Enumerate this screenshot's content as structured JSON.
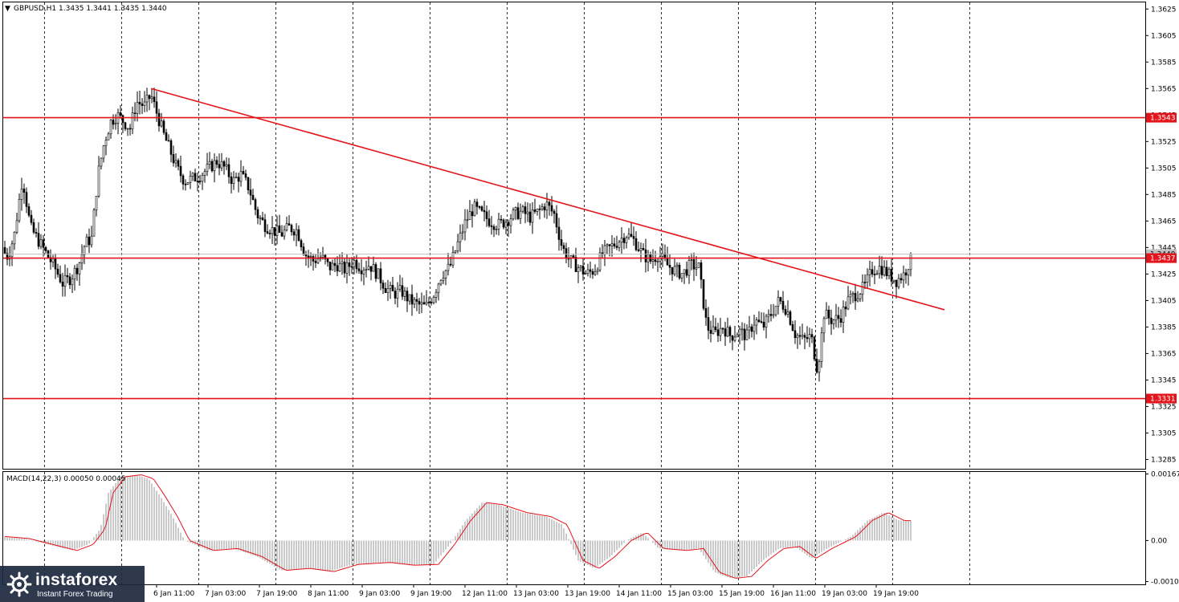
{
  "header": {
    "symbol_info": "GBPUSD,H1  1.3435 1.3441 1.3435 1.3440",
    "macd_info": "MACD(14,22,3) 0.00050 0.00045"
  },
  "logo": {
    "brand": "instaforex",
    "tagline": "Instant Forex Trading"
  },
  "colors": {
    "candles": "#000000",
    "level_lines": "#e4141b",
    "trendline": "#e4141b",
    "macd_hist": "#bdbdbd",
    "macd_signal": "#e4141b",
    "grid": "#000000"
  },
  "chart_data": {
    "type": "candlestick",
    "symbol": "GBPUSD",
    "timeframe": "H1",
    "last_bar": {
      "open": 1.3435,
      "high": 1.3441,
      "low": 1.3435,
      "close": 1.344
    },
    "price_axis": {
      "ticks": [
        "1.3625",
        "1.3605",
        "1.3585",
        "1.3565",
        "1.3545",
        "1.3525",
        "1.3505",
        "1.3485",
        "1.3465",
        "1.3445",
        "1.3425",
        "1.3405",
        "1.3385",
        "1.3365",
        "1.3345",
        "1.3325",
        "1.3305",
        "1.3285"
      ],
      "range": [
        1.3278,
        1.363
      ]
    },
    "time_axis_labels": [
      "6 Jan 11:00",
      "7 Jan 03:00",
      "7 Jan 19:00",
      "8 Jan 11:00",
      "9 Jan 03:00",
      "9 Jan 19:00",
      "12 Jan 11:00",
      "13 Jan 03:00",
      "13 Jan 19:00",
      "14 Jan 11:00",
      "15 Jan 03:00",
      "15 Jan 19:00",
      "16 Jan 11:00",
      "19 Jan 03:00",
      "19 Jan 19:00"
    ],
    "horizontal_levels": [
      {
        "value": 1.3543,
        "label": "1.3543"
      },
      {
        "value": 1.3437,
        "label": "1.3437"
      },
      {
        "value": 1.3331,
        "label": "1.3331"
      }
    ],
    "current_price": 1.344,
    "trendline": {
      "from_price": 1.3565,
      "to_price": 1.3398
    },
    "price_path": [
      [
        0,
        1.3445
      ],
      [
        10,
        1.3438
      ],
      [
        18,
        1.3455
      ],
      [
        28,
        1.3498
      ],
      [
        38,
        1.346
      ],
      [
        48,
        1.345
      ],
      [
        58,
        1.344
      ],
      [
        68,
        1.343
      ],
      [
        78,
        1.3418
      ],
      [
        88,
        1.3422
      ],
      [
        98,
        1.3432
      ],
      [
        106,
        1.3448
      ],
      [
        114,
        1.3452
      ],
      [
        122,
        1.35
      ],
      [
        130,
        1.3525
      ],
      [
        138,
        1.354
      ],
      [
        146,
        1.3545
      ],
      [
        154,
        1.354
      ],
      [
        162,
        1.3535
      ],
      [
        170,
        1.3555
      ],
      [
        180,
        1.3552
      ],
      [
        188,
        1.356
      ],
      [
        196,
        1.3545
      ],
      [
        204,
        1.353
      ],
      [
        212,
        1.3518
      ],
      [
        220,
        1.3505
      ],
      [
        230,
        1.3495
      ],
      [
        240,
        1.3497
      ],
      [
        250,
        1.35
      ],
      [
        260,
        1.3505
      ],
      [
        270,
        1.351
      ],
      [
        280,
        1.3505
      ],
      [
        290,
        1.3495
      ],
      [
        300,
        1.35
      ],
      [
        310,
        1.349
      ],
      [
        320,
        1.347
      ],
      [
        330,
        1.3462
      ],
      [
        340,
        1.3458
      ],
      [
        350,
        1.3455
      ],
      [
        360,
        1.346
      ],
      [
        370,
        1.3458
      ],
      [
        380,
        1.344
      ],
      [
        390,
        1.3435
      ],
      [
        400,
        1.3438
      ],
      [
        410,
        1.343
      ],
      [
        420,
        1.3432
      ],
      [
        430,
        1.3428
      ],
      [
        440,
        1.3435
      ],
      [
        450,
        1.343
      ],
      [
        460,
        1.3432
      ],
      [
        470,
        1.3425
      ],
      [
        480,
        1.3415
      ],
      [
        490,
        1.341
      ],
      [
        500,
        1.3412
      ],
      [
        510,
        1.3405
      ],
      [
        520,
        1.3402
      ],
      [
        530,
        1.34
      ],
      [
        540,
        1.341
      ],
      [
        550,
        1.3425
      ],
      [
        560,
        1.343
      ],
      [
        570,
        1.3448
      ],
      [
        580,
        1.3465
      ],
      [
        590,
        1.3475
      ],
      [
        600,
        1.347
      ],
      [
        610,
        1.3465
      ],
      [
        620,
        1.3462
      ],
      [
        630,
        1.3465
      ],
      [
        640,
        1.347
      ],
      [
        650,
        1.3472
      ],
      [
        660,
        1.3468
      ],
      [
        670,
        1.3472
      ],
      [
        680,
        1.3478
      ],
      [
        690,
        1.347
      ],
      [
        700,
        1.3445
      ],
      [
        710,
        1.3435
      ],
      [
        720,
        1.343
      ],
      [
        730,
        1.3425
      ],
      [
        740,
        1.3428
      ],
      [
        750,
        1.344
      ],
      [
        760,
        1.3445
      ],
      [
        770,
        1.345
      ],
      [
        780,
        1.3455
      ],
      [
        790,
        1.345
      ],
      [
        800,
        1.344
      ],
      [
        810,
        1.3435
      ],
      [
        820,
        1.344
      ],
      [
        830,
        1.3432
      ],
      [
        840,
        1.3428
      ],
      [
        850,
        1.3425
      ],
      [
        860,
        1.3432
      ],
      [
        870,
        1.343
      ],
      [
        880,
        1.3385
      ],
      [
        890,
        1.338
      ],
      [
        900,
        1.3385
      ],
      [
        910,
        1.3378
      ],
      [
        920,
        1.3382
      ],
      [
        930,
        1.3378
      ],
      [
        940,
        1.339
      ],
      [
        950,
        1.3385
      ],
      [
        960,
        1.3395
      ],
      [
        970,
        1.3405
      ],
      [
        980,
        1.3398
      ],
      [
        990,
        1.338
      ],
      [
        1000,
        1.3375
      ],
      [
        1010,
        1.3378
      ],
      [
        1018,
        1.3352
      ],
      [
        1026,
        1.3395
      ],
      [
        1036,
        1.339
      ],
      [
        1046,
        1.3392
      ],
      [
        1056,
        1.3405
      ],
      [
        1066,
        1.341
      ],
      [
        1076,
        1.3415
      ],
      [
        1086,
        1.3428
      ],
      [
        1096,
        1.343
      ],
      [
        1106,
        1.3425
      ],
      [
        1116,
        1.342
      ],
      [
        1126,
        1.3425
      ],
      [
        1136,
        1.344
      ]
    ],
    "macd": {
      "params": "14,22,3",
      "main": 0.0005,
      "signal": 0.00045,
      "axis_ticks": [
        "0.00167",
        "0.00",
        "-0.00103"
      ],
      "range": [
        -0.0011,
        0.00172
      ],
      "hist_path": [
        [
          0,
          0.0001
        ],
        [
          30,
          5e-05
        ],
        [
          60,
          -0.0001
        ],
        [
          90,
          -0.00025
        ],
        [
          110,
          -0.0001
        ],
        [
          125,
          0.0003
        ],
        [
          135,
          0.0012
        ],
        [
          150,
          0.0016
        ],
        [
          170,
          0.00165
        ],
        [
          185,
          0.00155
        ],
        [
          200,
          0.0011
        ],
        [
          215,
          0.0006
        ],
        [
          230,
          0.0
        ],
        [
          260,
          -0.00025
        ],
        [
          290,
          -0.0002
        ],
        [
          320,
          -0.0004
        ],
        [
          350,
          -0.00075
        ],
        [
          380,
          -0.0007
        ],
        [
          410,
          -0.00078
        ],
        [
          440,
          -0.0006
        ],
        [
          480,
          -0.00055
        ],
        [
          510,
          -0.00062
        ],
        [
          540,
          -0.0006
        ],
        [
          560,
          -0.0001
        ],
        [
          580,
          0.0005
        ],
        [
          600,
          0.00095
        ],
        [
          620,
          0.0009
        ],
        [
          650,
          0.0007
        ],
        [
          680,
          0.0006
        ],
        [
          700,
          0.0004
        ],
        [
          720,
          -0.0005
        ],
        [
          740,
          -0.0007
        ],
        [
          760,
          -0.0004
        ],
        [
          780,
          0.0
        ],
        [
          800,
          0.0002
        ],
        [
          820,
          -0.0002
        ],
        [
          850,
          -0.00025
        ],
        [
          870,
          -0.0002
        ],
        [
          890,
          -0.0008
        ],
        [
          910,
          -0.00095
        ],
        [
          930,
          -0.0009
        ],
        [
          950,
          -0.0005
        ],
        [
          970,
          -0.0002
        ],
        [
          990,
          -0.00015
        ],
        [
          1010,
          -0.00045
        ],
        [
          1030,
          -0.0002
        ],
        [
          1060,
          0.0001
        ],
        [
          1080,
          0.0005
        ],
        [
          1100,
          0.0007
        ],
        [
          1120,
          0.0005
        ],
        [
          1136,
          0.0005
        ]
      ]
    }
  }
}
